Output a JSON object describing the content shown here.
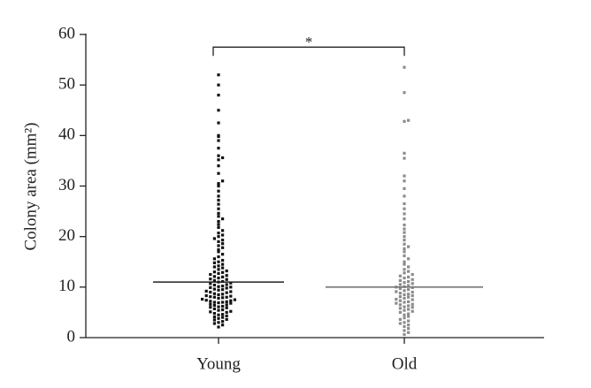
{
  "chart_data": {
    "type": "dot",
    "y_label": "Colony area (mm²)",
    "categories": [
      "Young",
      "Old"
    ],
    "groups": [
      {
        "color": "#111111",
        "median_color": "#222222",
        "median": 11,
        "values": [
          2.1,
          2.5,
          2.8,
          3,
          3.2,
          3.5,
          3.6,
          3.8,
          4,
          4.1,
          4.3,
          4.5,
          4.6,
          4.8,
          5,
          5.1,
          5.2,
          5.4,
          5.5,
          5.7,
          5.9,
          6,
          6.1,
          6.2,
          6.4,
          6.5,
          6.6,
          6.8,
          6.9,
          7,
          7,
          7.1,
          7.2,
          7.3,
          7.4,
          7.5,
          7.6,
          7.8,
          7.9,
          8,
          8,
          8.1,
          8.2,
          8.3,
          8.5,
          8.6,
          8.7,
          8.9,
          9,
          9.1,
          9.2,
          9.4,
          9.5,
          9.6,
          9.8,
          9.9,
          10,
          10.1,
          10.2,
          10.4,
          10.5,
          10.7,
          10.8,
          11,
          11.1,
          11.3,
          11.5,
          11.6,
          11.8,
          12,
          12.1,
          12.3,
          12.5,
          12.7,
          12.9,
          13,
          13.2,
          13.5,
          13.8,
          14,
          14.2,
          14.5,
          14.8,
          15,
          15.3,
          15.6,
          16,
          16.5,
          17,
          17.4,
          17.8,
          18.2,
          18.6,
          19,
          19.3,
          19.6,
          20,
          20.3,
          20.7,
          21.2,
          21.8,
          22.4,
          23,
          23.5,
          24,
          24.6,
          25.5,
          26.4,
          27.2,
          28,
          29,
          30,
          30.5,
          31,
          32.5,
          34,
          35.2,
          35.6,
          36,
          37.5,
          39,
          39.8,
          40,
          42.5,
          45,
          48,
          50,
          52
        ]
      },
      {
        "color": "#8c8c8c",
        "median_color": "#777777",
        "median": 10,
        "values": [
          0.6,
          1,
          1.4,
          1.8,
          2.2,
          2.5,
          2.8,
          3,
          3.3,
          3.6,
          3.9,
          4.2,
          4.5,
          4.7,
          5,
          5.2,
          5.4,
          5.6,
          5.8,
          6,
          6.1,
          6.3,
          6.5,
          6.6,
          6.8,
          7,
          7.1,
          7.3,
          7.5,
          7.6,
          7.8,
          8,
          8.1,
          8.3,
          8.5,
          8.6,
          8.8,
          9,
          9.1,
          9.3,
          9.5,
          9.7,
          9.9,
          10,
          10.1,
          10.3,
          10.5,
          10.7,
          10.9,
          11.1,
          11.3,
          11.5,
          11.8,
          12,
          12.2,
          12.5,
          12.8,
          13.1,
          13.5,
          14,
          14.5,
          15,
          15.6,
          16.2,
          17,
          17.6,
          18,
          18.5,
          19.3,
          20,
          20.8,
          21.5,
          22.3,
          23.5,
          24.5,
          25.5,
          26.5,
          28,
          29.5,
          31,
          32,
          35.5,
          36.5,
          42.8,
          43,
          48.5,
          53.5
        ]
      }
    ],
    "significance": {
      "label": "*",
      "level": 57.5
    },
    "ylim": [
      0,
      60
    ],
    "yticks": [
      0,
      10,
      20,
      30,
      40,
      50,
      60
    ]
  }
}
